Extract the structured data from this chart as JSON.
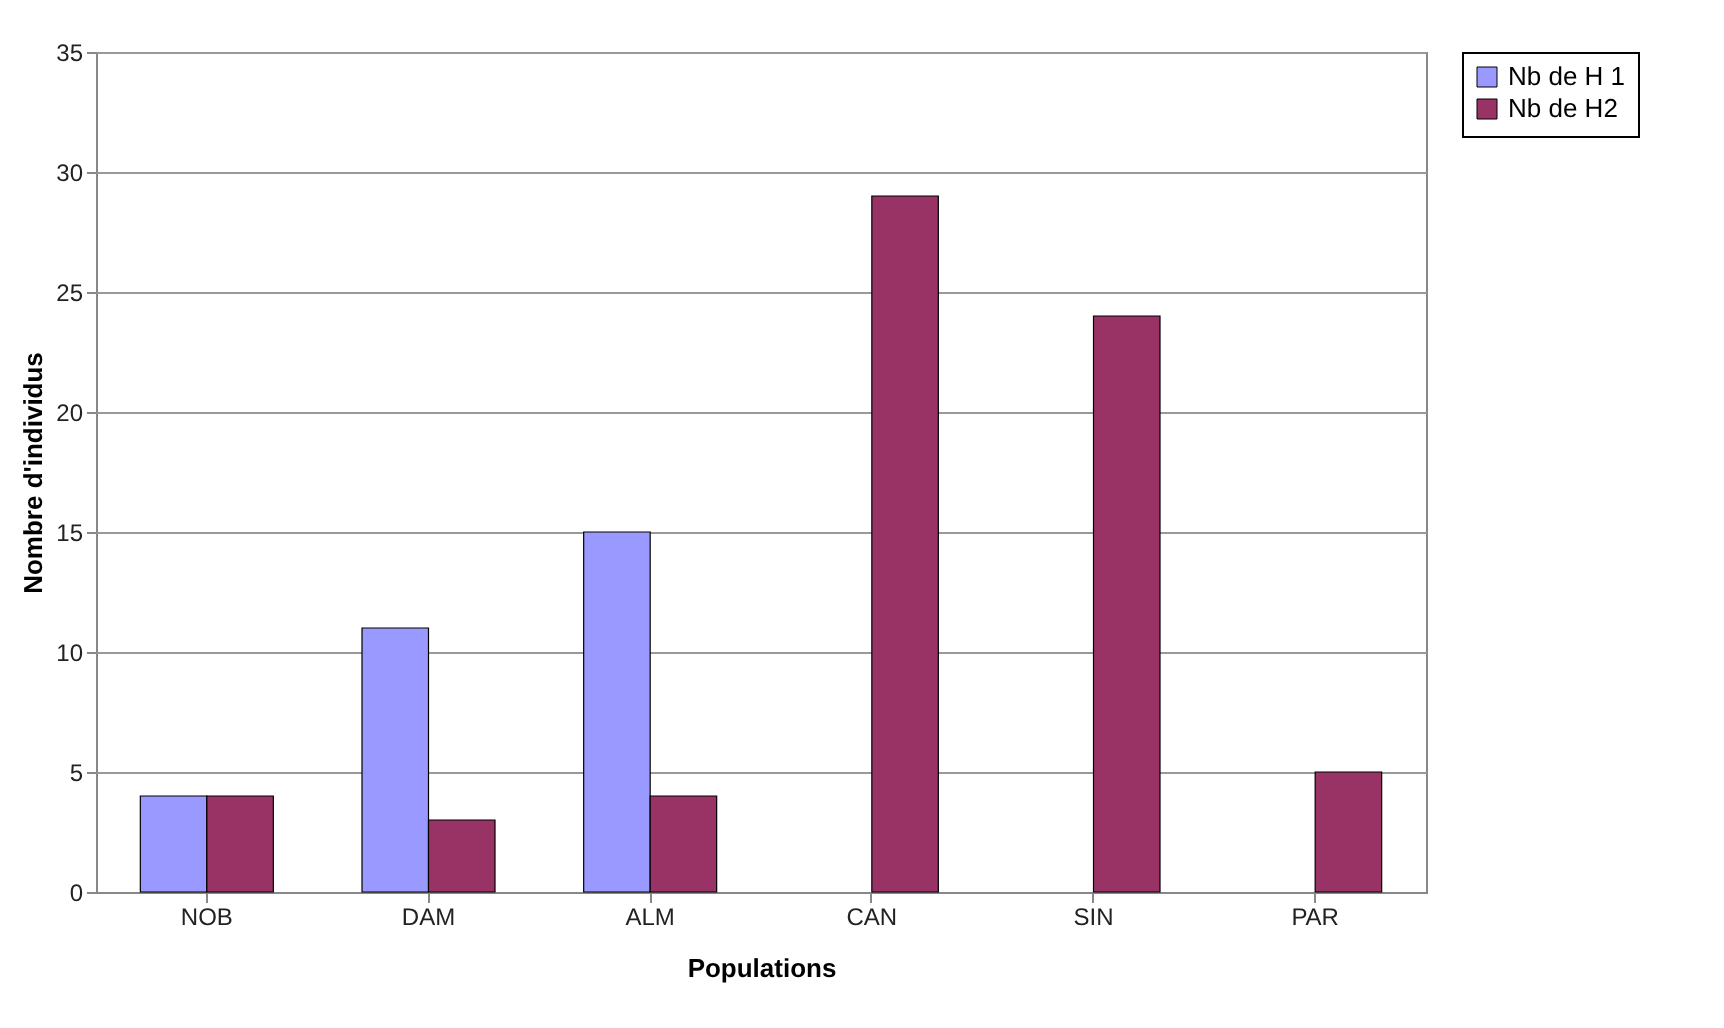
{
  "chart_data": {
    "type": "bar",
    "xlabel": "Populations",
    "ylabel": "Nombre d'individus",
    "categories": [
      "NOB",
      "DAM",
      "ALM",
      "CAN",
      "SIN",
      "PAR"
    ],
    "series": [
      {
        "name": "Nb de H 1",
        "color": "#9999ff",
        "values": [
          4,
          11,
          15,
          null,
          null,
          null
        ]
      },
      {
        "name": "Nb de H2",
        "color": "#993366",
        "values": [
          4,
          3,
          4,
          29,
          24,
          5
        ]
      }
    ],
    "ylim": [
      0,
      35
    ],
    "yticks": [
      0,
      5,
      10,
      15,
      20,
      25,
      30,
      35
    ],
    "grid": "y",
    "legend": "right"
  }
}
